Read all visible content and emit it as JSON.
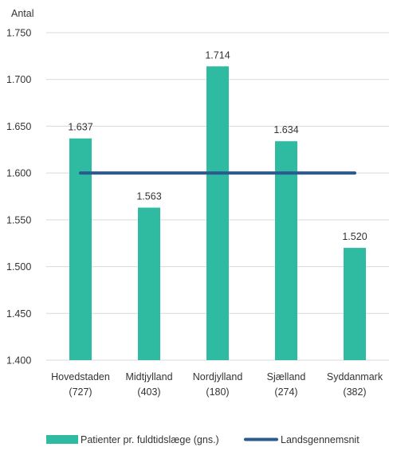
{
  "chart_data": {
    "type": "bar",
    "ylabel": "Antal",
    "ylim": [
      1400,
      1750
    ],
    "yticks": [
      1400,
      1450,
      1500,
      1550,
      1600,
      1650,
      1700,
      1750
    ],
    "ytick_labels": [
      "1.400",
      "1.450",
      "1.500",
      "1.550",
      "1.600",
      "1.650",
      "1.700",
      "1.750"
    ],
    "grid": true,
    "legend_position": "bottom",
    "categories": [
      [
        "Hovedstaden",
        "(727)"
      ],
      [
        "Midtjylland",
        "(403)"
      ],
      [
        "Nordjylland",
        "(180)"
      ],
      [
        "Sjælland",
        "(274)"
      ],
      [
        "Syddanmark",
        "(382)"
      ]
    ],
    "series": [
      {
        "name": "Patienter pr. fuldtidslæge (gns.)",
        "type": "bar",
        "color": "#2ebba1",
        "values": [
          1637,
          1563,
          1714,
          1634,
          1520
        ],
        "labels": [
          "1.637",
          "1.563",
          "1.714",
          "1.634",
          "1.520"
        ]
      },
      {
        "name": "Landsgennemsnit",
        "type": "line",
        "color": "#2b5a8f",
        "values": [
          1600,
          1600,
          1600,
          1600,
          1600
        ]
      }
    ]
  }
}
